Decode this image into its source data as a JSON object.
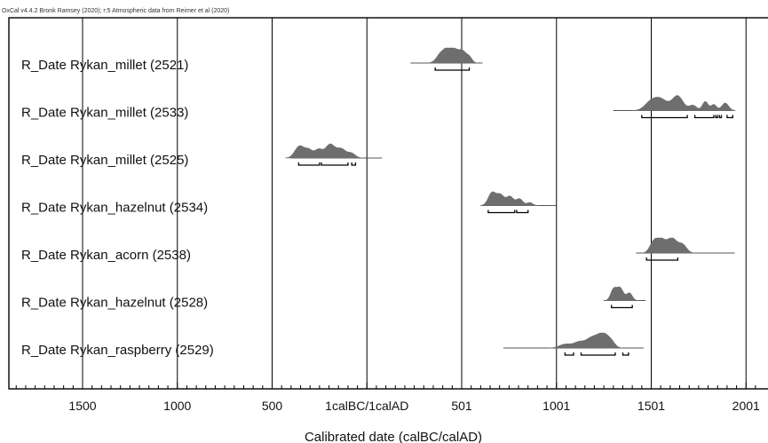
{
  "chart_data": {
    "type": "oxcal-multiplot",
    "header": "OxCal v4.4.2 Bronk Ramsey (2020); r:5 Atmospheric data from Reimer et al (2020)",
    "xlabel": "Calibrated date (calBC/calAD)",
    "xlim": [
      -1850,
      2050
    ],
    "x_ticks": [
      {
        "value": -1500,
        "label": "1500"
      },
      {
        "value": -1000,
        "label": "1000"
      },
      {
        "value": -500,
        "label": "500"
      },
      {
        "value": 0,
        "label": "1calBC/1calAD"
      },
      {
        "value": 500,
        "label": "501"
      },
      {
        "value": 1000,
        "label": "1001"
      },
      {
        "value": 1500,
        "label": "1501"
      },
      {
        "value": 2000,
        "label": "2001"
      }
    ],
    "color": "#6e6e6e",
    "rows": [
      {
        "label": "R_Date Rykan_millet (2521)",
        "range": [
          230,
          610
        ],
        "peaks": [
          [
            395,
            25,
            0.7
          ],
          [
            435,
            20,
            0.85
          ],
          [
            470,
            18,
            0.65
          ],
          [
            505,
            18,
            0.75
          ],
          [
            540,
            15,
            0.4
          ]
        ],
        "hpd": [
          [
            360,
            540
          ]
        ]
      },
      {
        "label": "R_Date Rykan_millet (2533)",
        "range": [
          1300,
          1940
        ],
        "peaks": [
          [
            1490,
            30,
            0.35
          ],
          [
            1545,
            40,
            0.8
          ],
          [
            1640,
            28,
            0.95
          ],
          [
            1720,
            20,
            0.35
          ],
          [
            1785,
            15,
            0.6
          ],
          [
            1830,
            15,
            0.4
          ],
          [
            1890,
            18,
            0.5
          ]
        ],
        "hpd": [
          [
            1450,
            1690
          ],
          [
            1730,
            1830
          ],
          [
            1840,
            1850
          ],
          [
            1860,
            1870
          ],
          [
            1900,
            1930
          ]
        ]
      },
      {
        "label": "R_Date Rykan_millet (2525)",
        "range": [
          -400,
          80
        ],
        "peaks": [
          [
            -355,
            25,
            0.8
          ],
          [
            -305,
            20,
            0.5
          ],
          [
            -255,
            20,
            0.55
          ],
          [
            -195,
            25,
            0.9
          ],
          [
            -135,
            25,
            0.6
          ],
          [
            -80,
            20,
            0.3
          ]
        ],
        "hpd": [
          [
            -360,
            -250
          ],
          [
            -240,
            -100
          ],
          [
            -80,
            -60
          ]
        ]
      },
      {
        "label": "R_Date Rykan_hazelnut (2534)",
        "range": [
          600,
          1000
        ],
        "peaks": [
          [
            660,
            20,
            0.85
          ],
          [
            705,
            20,
            0.7
          ],
          [
            755,
            18,
            0.6
          ],
          [
            805,
            18,
            0.45
          ],
          [
            860,
            15,
            0.2
          ]
        ],
        "hpd": [
          [
            640,
            780
          ],
          [
            790,
            850
          ]
        ]
      },
      {
        "label": "R_Date Rykan_acorn (2538)",
        "range": [
          1420,
          1940
        ],
        "peaks": [
          [
            1510,
            20,
            0.6
          ],
          [
            1550,
            25,
            0.9
          ],
          [
            1610,
            25,
            0.95
          ],
          [
            1665,
            22,
            0.55
          ]
        ],
        "hpd": [
          [
            1475,
            1640
          ]
        ]
      },
      {
        "label": "R_Date Rykan_hazelnut (2528)",
        "range": [
          1250,
          1470
        ],
        "peaks": [
          [
            1300,
            15,
            0.7
          ],
          [
            1335,
            18,
            0.85
          ],
          [
            1385,
            15,
            0.5
          ]
        ],
        "hpd": [
          [
            1290,
            1400
          ]
        ]
      },
      {
        "label": "R_Date Rykan_raspberry (2529)",
        "range": [
          720,
          1460
        ],
        "peaks": [
          [
            1045,
            30,
            0.25
          ],
          [
            1120,
            30,
            0.4
          ],
          [
            1185,
            28,
            0.6
          ],
          [
            1245,
            30,
            0.95
          ],
          [
            1290,
            20,
            0.3
          ]
        ],
        "hpd": [
          [
            1045,
            1090
          ],
          [
            1130,
            1310
          ],
          [
            1350,
            1380
          ]
        ]
      }
    ]
  }
}
